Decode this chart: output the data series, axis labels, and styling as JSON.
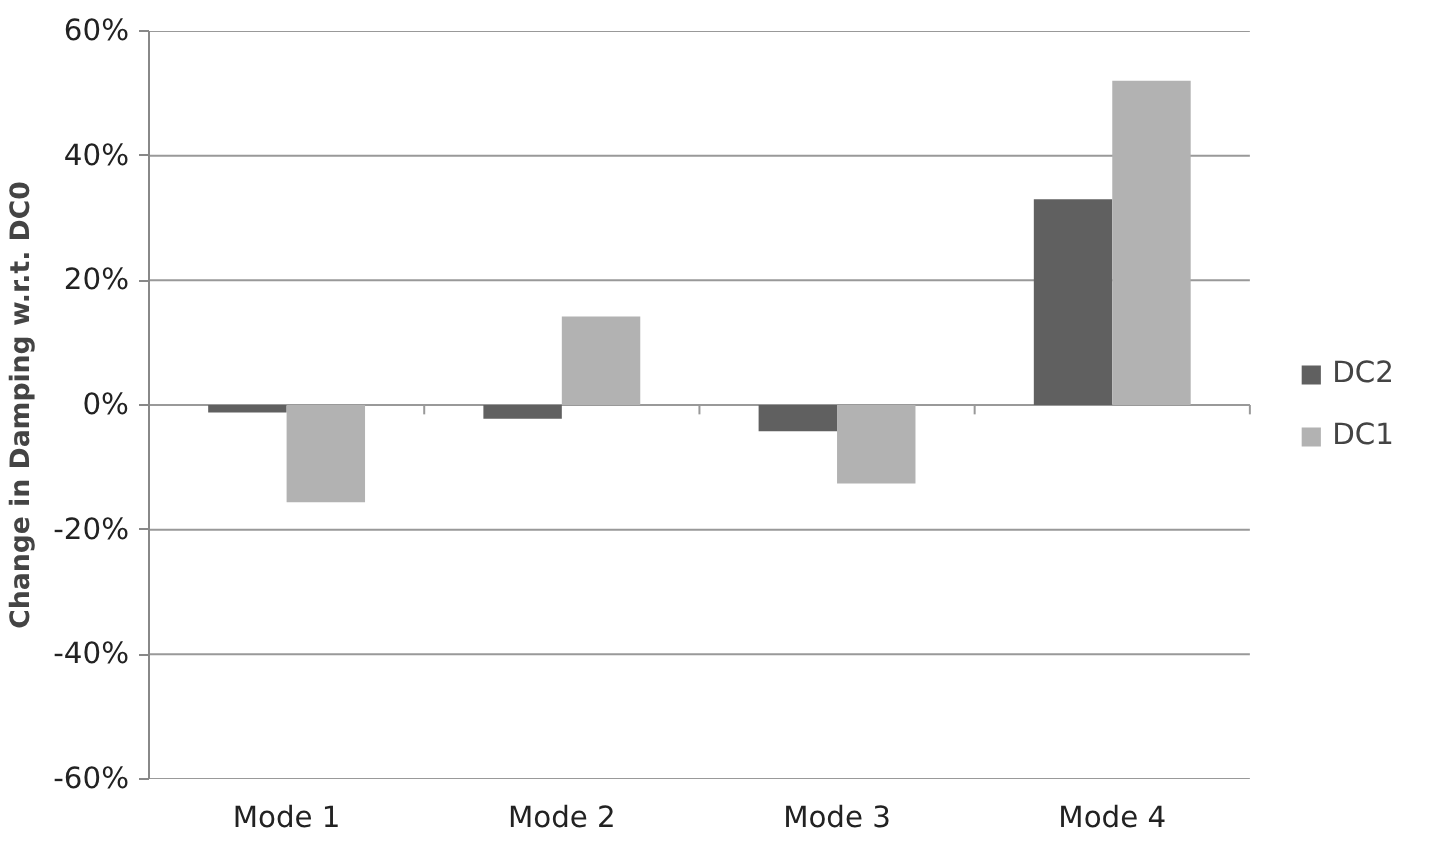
{
  "chart_data": {
    "type": "bar",
    "ylabel": "Change in Damping w.r.t. DC0",
    "categories": [
      "Mode 1",
      "Mode 2",
      "Mode 3",
      "Mode 4"
    ],
    "series": [
      {
        "name": "DC2",
        "color": "#606060",
        "values": [
          -1.2,
          -2.2,
          -4.2,
          33
        ]
      },
      {
        "name": "DC1",
        "color": "#b2b2b2",
        "values": [
          -15.6,
          14.2,
          -12.6,
          52
        ]
      }
    ],
    "ylim": [
      -60,
      60
    ],
    "yticks": [
      {
        "value": -60,
        "label": "-60%"
      },
      {
        "value": -40,
        "label": "-40%"
      },
      {
        "value": -20,
        "label": "-20%"
      },
      {
        "value": 0,
        "label": "0%"
      },
      {
        "value": 20,
        "label": "20%"
      },
      {
        "value": 40,
        "label": "40%"
      },
      {
        "value": 60,
        "label": "60%"
      }
    ],
    "grid": "y",
    "legend": "right"
  }
}
